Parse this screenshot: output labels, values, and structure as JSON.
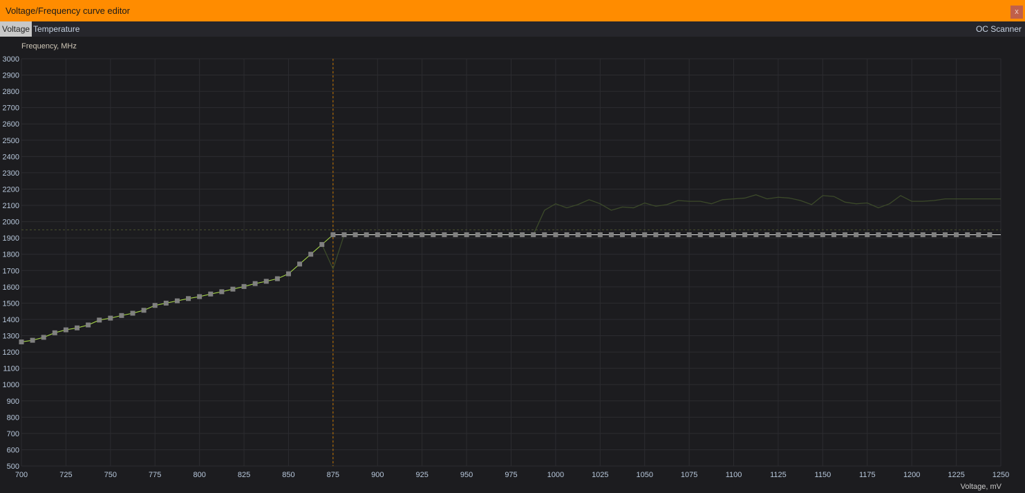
{
  "window": {
    "title": "Voltage/Frequency curve editor",
    "close_label": "x"
  },
  "tabs": [
    {
      "label": "Voltage",
      "active": true
    },
    {
      "label": "Temperature",
      "active": false
    }
  ],
  "oc_scanner_label": "OC Scanner",
  "colors": {
    "titlebar": "#ff8c00",
    "curve": "#a8d848",
    "measured": "#3c4a2a",
    "cursor": "#c87800",
    "points": "#808080"
  },
  "chart_data": {
    "type": "line",
    "ylabel": "Frequency, MHz",
    "xlabel": "Voltage, mV",
    "xlim": [
      700,
      1250
    ],
    "ylim": [
      500,
      3000
    ],
    "xticks": [
      700,
      725,
      750,
      775,
      800,
      825,
      850,
      875,
      900,
      925,
      950,
      975,
      1000,
      1025,
      1050,
      1075,
      1100,
      1125,
      1150,
      1175,
      1200,
      1225,
      1250
    ],
    "yticks": [
      500,
      600,
      700,
      800,
      900,
      1000,
      1100,
      1200,
      1300,
      1400,
      1500,
      1600,
      1700,
      1800,
      1900,
      2000,
      2100,
      2200,
      2300,
      2400,
      2500,
      2600,
      2700,
      2800,
      2900,
      3000
    ],
    "grid": true,
    "selected_voltage": 875,
    "limit_frequency": 1950,
    "curve": {
      "x_start": 700,
      "x_step": 6.25,
      "values": [
        1262,
        1272,
        1290,
        1318,
        1336,
        1348,
        1366,
        1396,
        1408,
        1424,
        1438,
        1456,
        1486,
        1500,
        1514,
        1528,
        1540,
        1556,
        1570,
        1586,
        1602,
        1620,
        1634,
        1650,
        1680,
        1740,
        1800,
        1860,
        1920,
        1920,
        1920,
        1920,
        1920,
        1920,
        1920,
        1920,
        1920,
        1920,
        1920,
        1920,
        1920,
        1920,
        1920,
        1920,
        1920,
        1920,
        1920,
        1920,
        1920,
        1920,
        1920,
        1920,
        1920,
        1920,
        1920,
        1920,
        1920,
        1920,
        1920,
        1920,
        1920,
        1920,
        1920,
        1920,
        1920,
        1920,
        1920,
        1920,
        1920,
        1920,
        1920,
        1920,
        1920,
        1920,
        1920,
        1920,
        1920,
        1920,
        1920,
        1920,
        1920,
        1920,
        1920,
        1920,
        1920,
        1920,
        1920,
        1920
      ]
    },
    "measured": {
      "x_start": 700,
      "x_step": 6.25,
      "values": [
        1262,
        1272,
        1290,
        1318,
        1336,
        1348,
        1366,
        1396,
        1408,
        1424,
        1438,
        1456,
        1486,
        1500,
        1514,
        1528,
        1540,
        1556,
        1570,
        1586,
        1602,
        1620,
        1634,
        1650,
        1680,
        1740,
        1800,
        1860,
        1710,
        1920,
        1920,
        1920,
        1920,
        1920,
        1920,
        1920,
        1920,
        1920,
        1920,
        1920,
        1920,
        1920,
        1920,
        1920,
        1920,
        1920,
        1920,
        2070,
        2110,
        2085,
        2105,
        2135,
        2110,
        2070,
        2090,
        2085,
        2115,
        2095,
        2105,
        2130,
        2125,
        2125,
        2110,
        2135,
        2140,
        2145,
        2165,
        2140,
        2150,
        2145,
        2130,
        2105,
        2160,
        2155,
        2120,
        2110,
        2115,
        2085,
        2110,
        2160,
        2125,
        2125,
        2130,
        2140,
        2140,
        2140
      ]
    }
  }
}
